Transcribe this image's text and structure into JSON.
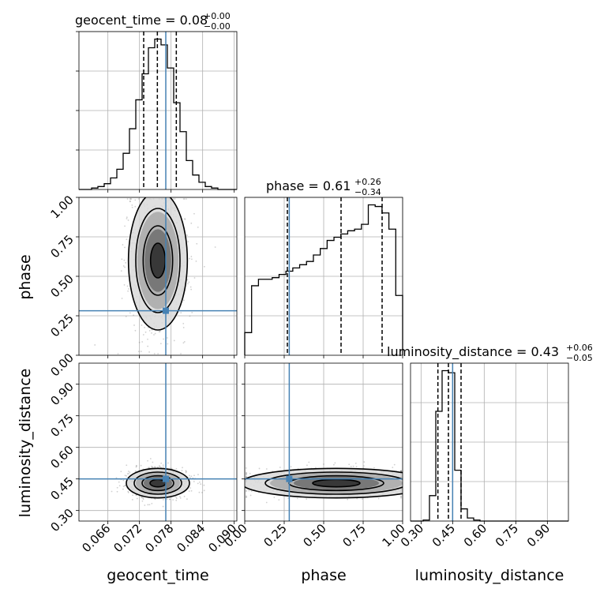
{
  "chart_data": {
    "type": "corner",
    "parameters": [
      "geocent_time",
      "phase",
      "luminosity_distance"
    ],
    "titles": [
      {
        "param": "geocent_time",
        "median": "0.08",
        "plus": "+0.00",
        "minus": "−0.00"
      },
      {
        "param": "phase",
        "median": "0.61",
        "plus": "+0.26",
        "minus": "−0.34"
      },
      {
        "param": "luminosity_distance",
        "median": "0.43",
        "plus": "+0.06",
        "minus": "−0.05"
      }
    ],
    "ranges": {
      "geocent_time": [
        0.0605,
        0.0905
      ],
      "phase": [
        0.0,
        1.0
      ],
      "luminosity_distance": [
        0.25,
        1.0
      ]
    },
    "ticks": {
      "geocent_time": [
        "0.066",
        "0.072",
        "0.078",
        "0.084",
        "0.090"
      ],
      "phase": [
        "0.00",
        "0.25",
        "0.50",
        "0.75",
        "1.00"
      ],
      "luminosity_distance": [
        "0.30",
        "0.45",
        "0.60",
        "0.75",
        "0.90"
      ]
    },
    "injection": {
      "geocent_time": 0.077,
      "phase": 0.282,
      "luminosity_distance": 0.45
    },
    "quantiles": {
      "geocent_time": [
        0.0728,
        0.0754,
        0.079
      ],
      "phase": [
        0.27,
        0.61,
        0.87
      ],
      "luminosity_distance": [
        0.38,
        0.43,
        0.49
      ]
    },
    "histograms": {
      "geocent_time": [
        0,
        0,
        1,
        2,
        4,
        8,
        14,
        25,
        42,
        62,
        80,
        98,
        104,
        100,
        84,
        60,
        40,
        20,
        10,
        5,
        2,
        1,
        0,
        0,
        0
      ],
      "phase": [
        14,
        43,
        47,
        47,
        48,
        50,
        52,
        54,
        56,
        58,
        62,
        66,
        71,
        73,
        75,
        77,
        78,
        81,
        93,
        92,
        88,
        78,
        37
      ],
      "luminosity_distance": [
        0,
        0,
        1,
        25,
        108,
        148,
        146,
        50,
        12,
        3,
        1,
        0,
        0,
        0,
        0,
        0,
        0,
        0,
        0,
        0,
        0,
        0,
        0,
        0,
        0
      ]
    },
    "grid": true
  }
}
